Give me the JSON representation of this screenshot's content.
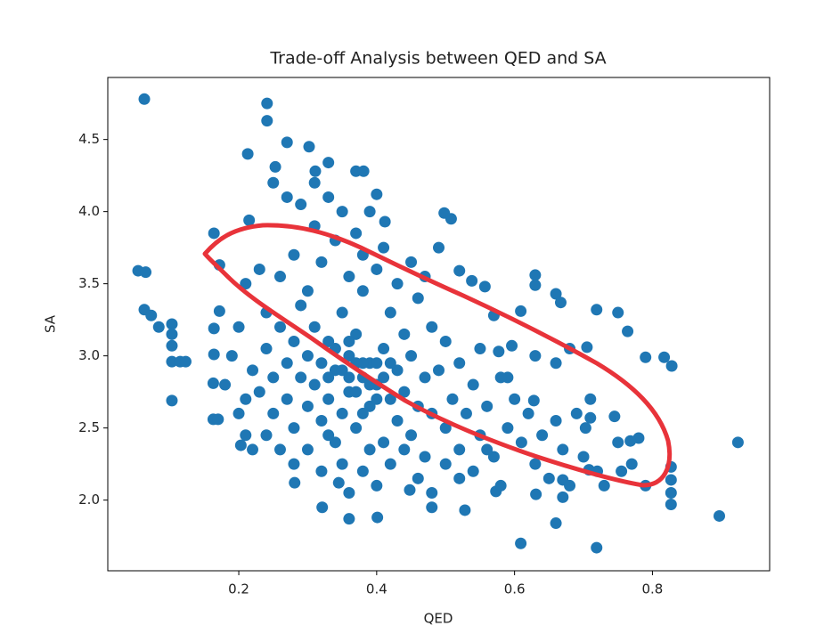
{
  "chart_data": {
    "type": "scatter",
    "title": "Trade-off Analysis between QED and SA",
    "x_label": "QED",
    "y_label": "SA",
    "color": "#1f77b4",
    "grid": false,
    "xlim": [
      0.01,
      0.97
    ],
    "ylim": [
      1.51,
      4.93
    ],
    "xticks": [
      0.2,
      0.4,
      0.6,
      0.8
    ],
    "yticks": [
      {
        "value": 2,
        "label": "2.0"
      },
      2.5,
      {
        "value": 3,
        "label": "3.0"
      },
      3.5,
      {
        "value": 4,
        "label": "4.0"
      },
      4.5
    ],
    "x": [
      0.063,
      0.241,
      0.241,
      0.054,
      0.065,
      0.063,
      0.073,
      0.084,
      0.103,
      0.103,
      0.103,
      0.103,
      0.115,
      0.123,
      0.103,
      0.924,
      0.897,
      0.719,
      0.609,
      0.66,
      0.401,
      0.36,
      0.321,
      0.528,
      0.828,
      0.817,
      0.79,
      0.75,
      0.719,
      0.764,
      0.827,
      0.827,
      0.827,
      0.827,
      0.78,
      0.768,
      0.27,
      0.302,
      0.213,
      0.253,
      0.311,
      0.33,
      0.37,
      0.381,
      0.4,
      0.412,
      0.498,
      0.508,
      0.215,
      0.164,
      0.172,
      0.52,
      0.63,
      0.63,
      0.66,
      0.667,
      0.163,
      0.17,
      0.163,
      0.164,
      0.164,
      0.172,
      0.203,
      0.281,
      0.345,
      0.448,
      0.48,
      0.573,
      0.631,
      0.67,
      0.708,
      0.755,
      0.67,
      0.71,
      0.71,
      0.745,
      0.703,
      0.66,
      0.63,
      0.68,
      0.705,
      0.628,
      0.59,
      0.577,
      0.596,
      0.609,
      0.57,
      0.557,
      0.538,
      0.22,
      0.23,
      0.24,
      0.25,
      0.25,
      0.26,
      0.27,
      0.27,
      0.28,
      0.28,
      0.29,
      0.29,
      0.3,
      0.3,
      0.31,
      0.31,
      0.32,
      0.32,
      0.33,
      0.33,
      0.34,
      0.34,
      0.35,
      0.35,
      0.36,
      0.36,
      0.37,
      0.37,
      0.38,
      0.38,
      0.39,
      0.39,
      0.4,
      0.4,
      0.41,
      0.41,
      0.42,
      0.42,
      0.43,
      0.43,
      0.44,
      0.44,
      0.45,
      0.45,
      0.46,
      0.46,
      0.47,
      0.47,
      0.48,
      0.48,
      0.49,
      0.5,
      0.5,
      0.51,
      0.52,
      0.52,
      0.53,
      0.54,
      0.55,
      0.55,
      0.56,
      0.57,
      0.58,
      0.59,
      0.6,
      0.61,
      0.62,
      0.63,
      0.64,
      0.65,
      0.66,
      0.67,
      0.68,
      0.69,
      0.7,
      0.72,
      0.73,
      0.75,
      0.77,
      0.79,
      0.21,
      0.23,
      0.24,
      0.26,
      0.28,
      0.3,
      0.31,
      0.32,
      0.33,
      0.34,
      0.35,
      0.36,
      0.37,
      0.38,
      0.39,
      0.41,
      0.43,
      0.45,
      0.47,
      0.49,
      0.27,
      0.29,
      0.25,
      0.31,
      0.2,
      0.21,
      0.22,
      0.24,
      0.26,
      0.28,
      0.3,
      0.32,
      0.33,
      0.35,
      0.36,
      0.38,
      0.39,
      0.4,
      0.42,
      0.44,
      0.46,
      0.48,
      0.5,
      0.52,
      0.54,
      0.56,
      0.58,
      0.19,
      0.2,
      0.18,
      0.21,
      0.33,
      0.34,
      0.35,
      0.36,
      0.37,
      0.38,
      0.39,
      0.4,
      0.41,
      0.42,
      0.37,
      0.36,
      0.4,
      0.38
    ],
    "values": [
      4.78,
      4.75,
      4.63,
      3.59,
      3.58,
      3.32,
      3.28,
      3.2,
      3.22,
      3.15,
      3.07,
      2.96,
      2.96,
      2.96,
      2.69,
      2.4,
      1.89,
      1.67,
      1.7,
      1.84,
      1.88,
      1.87,
      1.95,
      1.93,
      2.93,
      2.99,
      2.99,
      3.3,
      3.32,
      3.17,
      2.23,
      2.14,
      2.05,
      1.97,
      2.43,
      2.41,
      4.48,
      4.45,
      4.4,
      4.31,
      4.28,
      4.34,
      4.28,
      4.28,
      4.12,
      3.93,
      3.99,
      3.95,
      3.94,
      3.85,
      3.63,
      3.59,
      3.56,
      3.49,
      3.43,
      3.37,
      2.56,
      2.56,
      2.81,
      3.01,
      3.19,
      3.31,
      2.38,
      2.12,
      2.12,
      2.07,
      1.95,
      2.06,
      2.04,
      2.14,
      2.21,
      2.2,
      2.02,
      2.7,
      2.57,
      2.58,
      2.5,
      2.95,
      3.0,
      3.05,
      3.06,
      2.69,
      2.85,
      3.03,
      3.07,
      3.31,
      3.28,
      3.48,
      3.52,
      2.9,
      2.75,
      3.05,
      2.85,
      2.6,
      3.2,
      2.95,
      2.7,
      3.1,
      2.5,
      2.85,
      3.35,
      2.65,
      3.0,
      2.8,
      3.2,
      2.55,
      2.95,
      3.1,
      2.7,
      2.4,
      2.9,
      3.3,
      2.6,
      3.0,
      2.75,
      2.5,
      3.15,
      2.85,
      3.45,
      2.65,
      2.95,
      3.6,
      2.8,
      2.4,
      3.05,
      2.7,
      3.3,
      2.9,
      2.55,
      3.15,
      2.75,
      2.45,
      3.0,
      2.65,
      3.4,
      2.85,
      2.3,
      3.2,
      2.6,
      2.9,
      2.5,
      3.1,
      2.7,
      2.35,
      2.95,
      2.6,
      2.8,
      2.45,
      3.05,
      2.65,
      2.3,
      2.85,
      2.5,
      2.7,
      2.4,
      2.6,
      2.25,
      2.45,
      2.15,
      2.55,
      2.35,
      2.1,
      2.6,
      2.3,
      2.2,
      2.1,
      2.4,
      2.25,
      2.1,
      3.5,
      3.6,
      3.3,
      3.55,
      3.7,
      3.45,
      3.9,
      3.65,
      4.1,
      3.8,
      4.0,
      3.55,
      3.85,
      3.7,
      4.0,
      3.75,
      3.5,
      3.65,
      3.55,
      3.75,
      4.1,
      4.05,
      4.2,
      4.2,
      2.6,
      2.45,
      2.35,
      2.45,
      2.35,
      2.25,
      2.35,
      2.2,
      2.45,
      2.25,
      2.05,
      2.2,
      2.35,
      2.1,
      2.25,
      2.35,
      2.15,
      2.05,
      2.25,
      2.15,
      2.2,
      2.35,
      2.1,
      3.0,
      3.2,
      2.8,
      2.7,
      2.85,
      3.05,
      2.9,
      2.85,
      2.75,
      2.95,
      2.8,
      2.95,
      2.85,
      2.95,
      2.95,
      3.1,
      2.7,
      2.6
    ]
  }
}
